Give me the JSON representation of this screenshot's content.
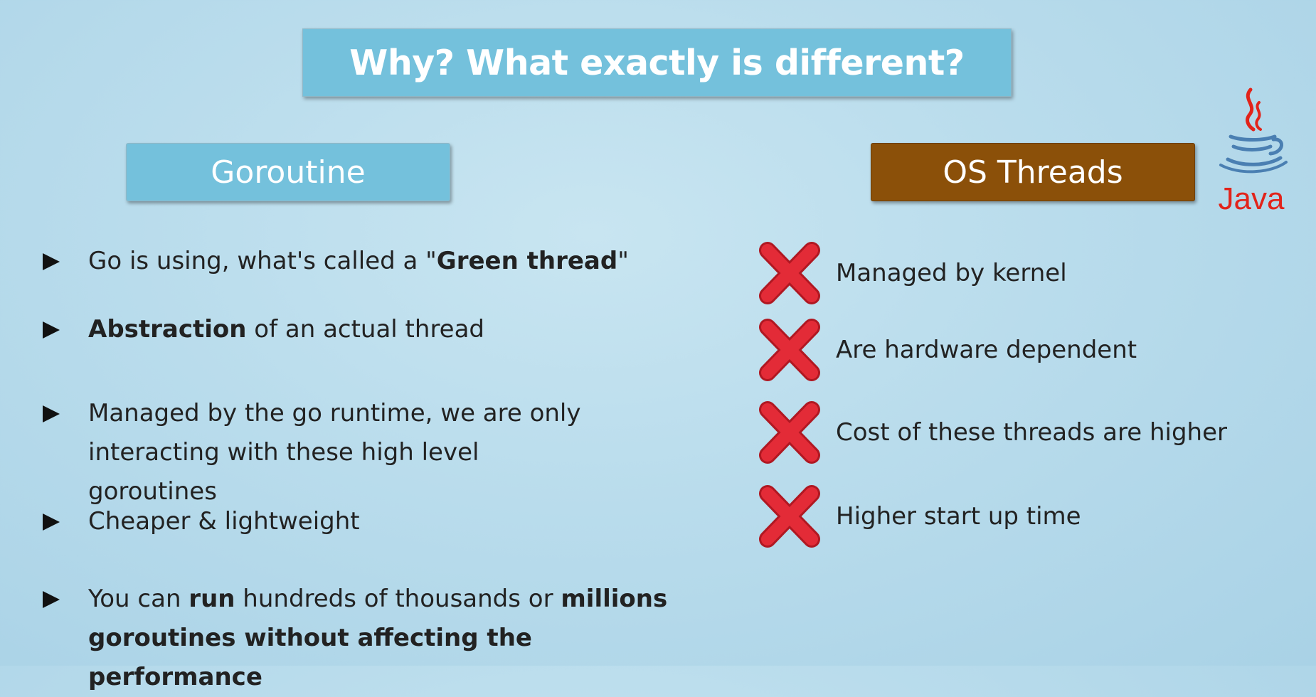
{
  "title": "Why? What exactly is different?",
  "goroutine": {
    "header": "Goroutine",
    "bullets": [
      {
        "parts": [
          {
            "t": "Go is using, what's called a \"",
            "b": false
          },
          {
            "t": "Green thread",
            "b": true
          },
          {
            "t": "\"",
            "b": false
          }
        ]
      },
      {
        "parts": [
          {
            "t": "Abstraction",
            "b": true
          },
          {
            "t": " of an actual thread",
            "b": false
          }
        ]
      },
      {
        "parts": [
          {
            "t": "Managed by the go runtime, we are only interacting with these high level goroutines",
            "b": false
          }
        ]
      },
      {
        "parts": [
          {
            "t": "Cheaper & lightweight",
            "b": false
          }
        ]
      },
      {
        "parts": [
          {
            "t": "You can ",
            "b": false
          },
          {
            "t": "run",
            "b": true
          },
          {
            "t": " hundreds of thousands or ",
            "b": false
          },
          {
            "t": "millions goroutines without affecting the performance",
            "b": true
          }
        ]
      }
    ]
  },
  "os_threads": {
    "header": "OS Threads",
    "items": [
      "Managed by kernel",
      "Are hardware dependent",
      "Cost of these threads are higher",
      "Higher start up time"
    ]
  },
  "logo": {
    "text": "Java",
    "icon": "java-coffee-cup-icon"
  },
  "colors": {
    "title_bg": "#74c1dc",
    "goroutine_bg": "#74c1dc",
    "os_bg": "#8b5009",
    "x_red": "#e32b37",
    "java_red": "#e2231a",
    "java_blue": "#4a7fb2"
  }
}
